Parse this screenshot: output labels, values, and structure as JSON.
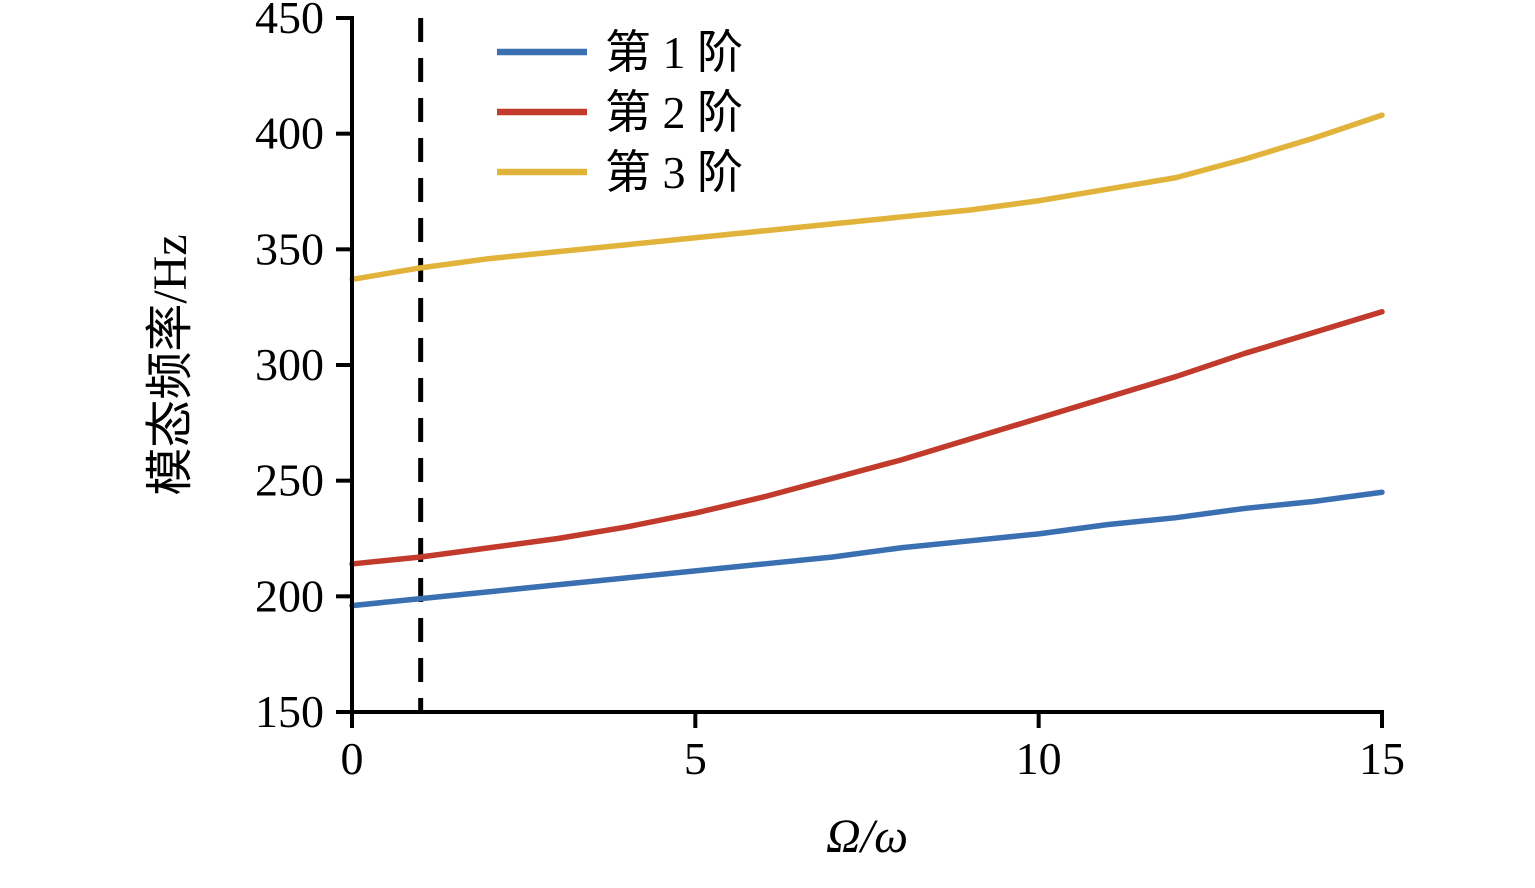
{
  "chart_data": {
    "type": "line",
    "title": "",
    "xlabel": "Ω/ω",
    "ylabel": "模态频率/Hz",
    "xlim": [
      0,
      15
    ],
    "ylim": [
      150,
      450
    ],
    "xticks": [
      0,
      5,
      10,
      15
    ],
    "yticks": [
      150,
      200,
      250,
      300,
      350,
      400,
      450
    ],
    "grid": false,
    "legend_position": "top-left-inside",
    "x": [
      0,
      1,
      2,
      3,
      4,
      5,
      6,
      7,
      8,
      9,
      10,
      11,
      12,
      13,
      14,
      15
    ],
    "series": [
      {
        "name": "第 1 阶",
        "color": "#3a70b2",
        "values": [
          196,
          199,
          202,
          205,
          208,
          211,
          214,
          217,
          221,
          224,
          227,
          231,
          234,
          238,
          241,
          245
        ]
      },
      {
        "name": "第 2 阶",
        "color": "#c13a2b",
        "values": [
          214,
          217,
          221,
          225,
          230,
          236,
          243,
          251,
          259,
          268,
          277,
          286,
          295,
          305,
          314,
          323
        ]
      },
      {
        "name": "第 3 阶",
        "color": "#e2b33b",
        "values": [
          337,
          342,
          346,
          349,
          352,
          355,
          358,
          361,
          364,
          367,
          371,
          376,
          381,
          389,
          398,
          408
        ]
      }
    ],
    "annotations": [
      {
        "type": "vline",
        "x": 1,
        "style": "dashed",
        "color": "#000000"
      }
    ],
    "axis_color": "#000000"
  }
}
